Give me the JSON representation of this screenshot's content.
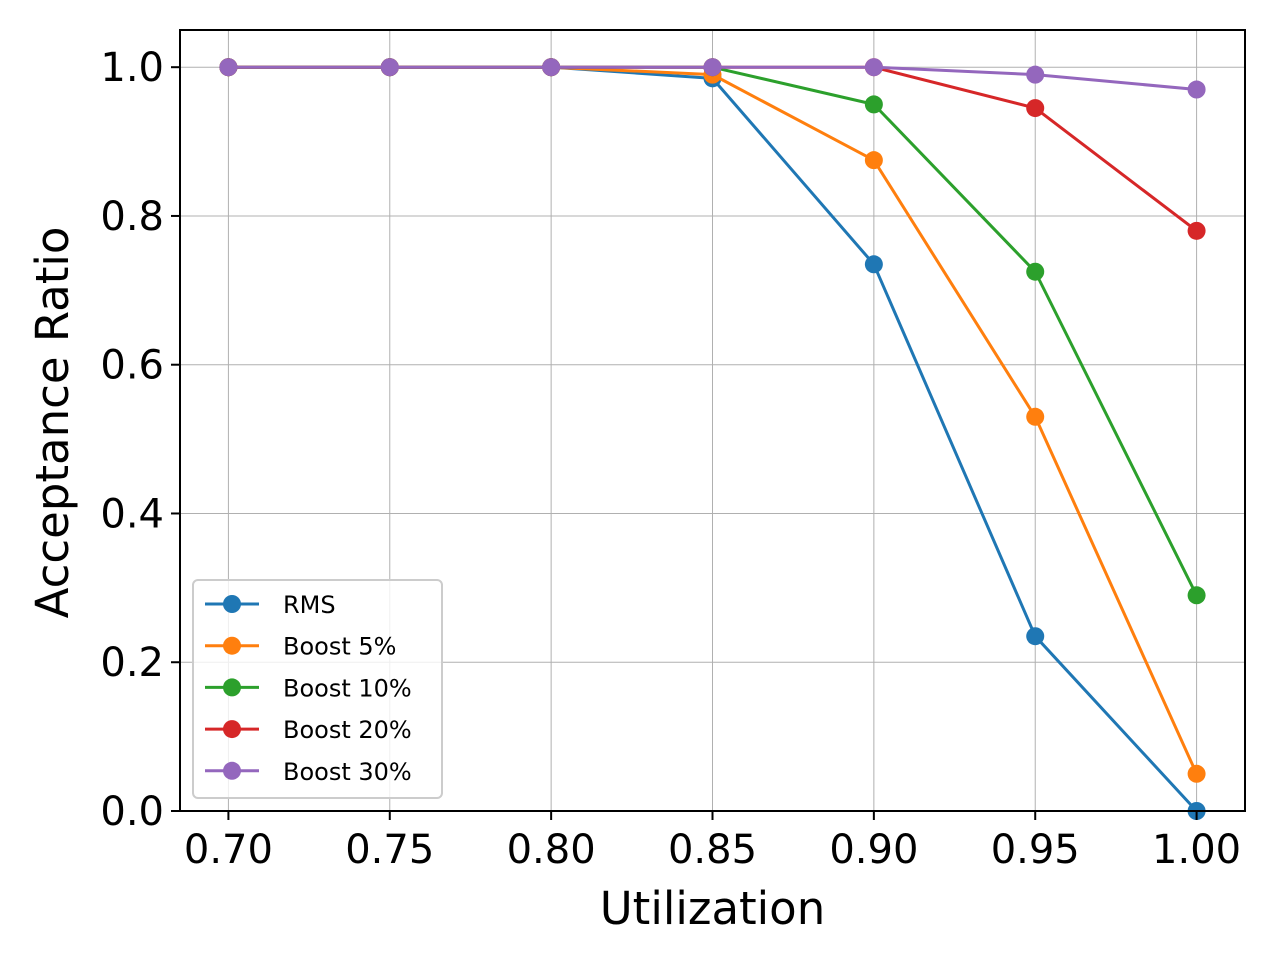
{
  "chart_data": {
    "type": "line",
    "title": "",
    "xlabel": "Utilization",
    "ylabel": "Acceptance Ratio",
    "x": [
      0.7,
      0.75,
      0.8,
      0.85,
      0.9,
      0.95,
      1.0
    ],
    "x_tick_labels": [
      "0.70",
      "0.75",
      "0.80",
      "0.85",
      "0.90",
      "0.95",
      "1.00"
    ],
    "y_ticks": [
      0.0,
      0.2,
      0.4,
      0.6,
      0.8,
      1.0
    ],
    "y_tick_labels": [
      "0.0",
      "0.2",
      "0.4",
      "0.6",
      "0.8",
      "1.0"
    ],
    "xlim": [
      0.685,
      1.015
    ],
    "ylim": [
      0.0,
      1.05
    ],
    "grid": true,
    "legend_position": "lower-left",
    "series": [
      {
        "name": "RMS",
        "color": "#1f77b4",
        "values": [
          1.0,
          1.0,
          1.0,
          0.985,
          0.735,
          0.235,
          0.0
        ]
      },
      {
        "name": "Boost 5%",
        "color": "#ff7f0e",
        "values": [
          1.0,
          1.0,
          1.0,
          0.99,
          0.875,
          0.53,
          0.05
        ]
      },
      {
        "name": "Boost 10%",
        "color": "#2ca02c",
        "values": [
          1.0,
          1.0,
          1.0,
          1.0,
          0.95,
          0.725,
          0.29
        ]
      },
      {
        "name": "Boost 20%",
        "color": "#d62728",
        "values": [
          1.0,
          1.0,
          1.0,
          1.0,
          1.0,
          0.945,
          0.78
        ]
      },
      {
        "name": "Boost 30%",
        "color": "#9467bd",
        "values": [
          1.0,
          1.0,
          1.0,
          1.0,
          1.0,
          0.99,
          0.97
        ]
      }
    ]
  }
}
